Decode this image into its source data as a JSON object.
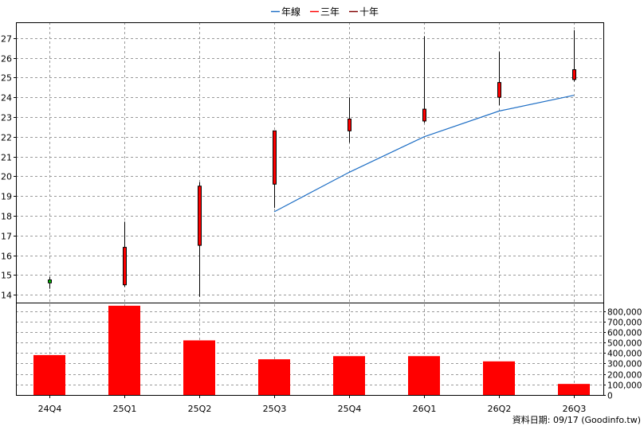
{
  "chart_data": {
    "type": "candlestick",
    "legend": [
      {
        "label": "年線",
        "color": "#1f6fc5"
      },
      {
        "label": "三年",
        "color": "#ff0000"
      },
      {
        "label": "十年",
        "color": "#800000"
      }
    ],
    "categories": [
      "24Q4",
      "25Q1",
      "25Q2",
      "25Q3",
      "25Q4",
      "26Q1",
      "26Q2",
      "26Q3"
    ],
    "price_axis": {
      "ylim": [
        13.6,
        27.8
      ],
      "ticks": [
        14,
        15,
        16,
        17,
        18,
        19,
        20,
        21,
        22,
        23,
        24,
        25,
        26,
        27
      ]
    },
    "volume_axis": {
      "ylim": [
        0,
        880000
      ],
      "ticks": [
        0,
        100000,
        200000,
        300000,
        400000,
        500000,
        600000,
        700000,
        800000
      ],
      "tick_labels": [
        "0",
        "100,000",
        "200,000",
        "300,000",
        "400,000",
        "500,000",
        "600,000",
        "700,000",
        "800,000"
      ]
    },
    "candles": [
      {
        "category": "24Q4",
        "open": 14.6,
        "high": 14.9,
        "low": 14.3,
        "close": 14.75,
        "color": "#00c000"
      },
      {
        "category": "25Q1",
        "open": 14.5,
        "high": 17.7,
        "low": 14.4,
        "close": 16.4,
        "color": "#ff0000"
      },
      {
        "category": "25Q2",
        "open": 16.5,
        "high": 19.7,
        "low": 13.9,
        "close": 19.5,
        "color": "#ff0000"
      },
      {
        "category": "25Q3",
        "open": 19.6,
        "high": 22.3,
        "low": 18.4,
        "close": 22.3,
        "color": "#ff0000"
      },
      {
        "category": "25Q4",
        "open": 22.3,
        "high": 24.0,
        "low": 21.7,
        "close": 22.9,
        "color": "#ff0000"
      },
      {
        "category": "26Q1",
        "open": 22.8,
        "high": 27.1,
        "low": 22.7,
        "close": 23.4,
        "color": "#ff0000"
      },
      {
        "category": "26Q2",
        "open": 24.0,
        "high": 26.3,
        "low": 23.6,
        "close": 24.75,
        "color": "#ff0000"
      },
      {
        "category": "26Q3",
        "open": 24.9,
        "high": 27.4,
        "low": 24.8,
        "close": 25.4,
        "color": "#ff0000"
      }
    ],
    "line_series": [
      {
        "name": "年線",
        "color": "#1f6fc5",
        "points": [
          [
            "25Q3",
            18.2
          ],
          [
            "25Q4",
            20.2
          ],
          [
            "26Q1",
            22.0
          ],
          [
            "26Q2",
            23.3
          ],
          [
            "26Q3",
            24.1
          ]
        ]
      }
    ],
    "volume": [
      380000,
      850000,
      520000,
      340000,
      370000,
      370000,
      320000,
      105000
    ],
    "volume_color": "#ff0000",
    "grid": true,
    "legend_position": "top-center"
  },
  "footer": {
    "date_label": "資料日期: 09/17",
    "source": "(Goodinfo.tw)"
  }
}
